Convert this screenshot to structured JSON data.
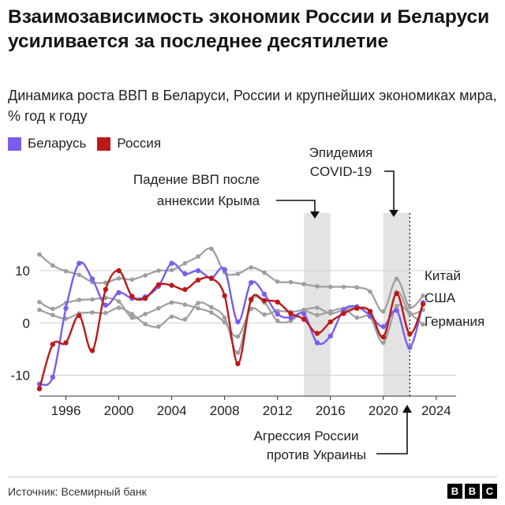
{
  "header": {
    "title": "Взаимозависимость экономик России и Беларуси усиливается за последнее десятилетие",
    "subtitle": "Динамика роста ВВП в Беларуси, России и крупнейших экономиках мира, % год к году"
  },
  "legend": [
    {
      "label": "Беларусь",
      "color": "#7b5cf0"
    },
    {
      "label": "Россия",
      "color": "#bb1919"
    }
  ],
  "annotations": {
    "crimea": "Падение ВВП после аннексии Крыма",
    "covid": "Эпидемия COVID-19",
    "ukraine": "Агрессия России против Украины"
  },
  "chart_data": {
    "type": "line",
    "x": [
      1994,
      1995,
      1996,
      1997,
      1998,
      1999,
      2000,
      2001,
      2002,
      2003,
      2004,
      2005,
      2006,
      2007,
      2008,
      2009,
      2010,
      2011,
      2012,
      2013,
      2014,
      2015,
      2016,
      2017,
      2018,
      2019,
      2020,
      2021,
      2022,
      2023
    ],
    "xticks": [
      1996,
      2000,
      2004,
      2008,
      2012,
      2016,
      2020,
      2024
    ],
    "yticks": [
      10,
      0,
      -10
    ],
    "xlim": [
      1994,
      2025.5
    ],
    "ylim": [
      -14,
      18
    ],
    "series": [
      {
        "name": "Беларусь",
        "color": "#7b5cf0",
        "role": "highlight",
        "values": [
          -11.7,
          -10.4,
          2.8,
          11.4,
          8.4,
          3.4,
          5.8,
          4.7,
          5.0,
          7.0,
          11.4,
          9.4,
          10.0,
          8.6,
          10.2,
          0.2,
          7.7,
          5.5,
          1.7,
          1.0,
          1.7,
          -3.8,
          -2.5,
          2.5,
          3.1,
          1.4,
          -0.7,
          2.4,
          -4.7,
          3.9
        ]
      },
      {
        "name": "Россия",
        "color": "#bb1919",
        "role": "highlight",
        "values": [
          -12.6,
          -4.1,
          -3.8,
          1.4,
          -5.3,
          6.4,
          10.0,
          5.1,
          4.7,
          7.3,
          7.2,
          6.4,
          8.2,
          8.5,
          5.2,
          -7.8,
          4.5,
          4.3,
          4.0,
          1.8,
          0.7,
          -2.0,
          0.2,
          1.8,
          2.8,
          2.2,
          -2.7,
          5.6,
          -2.1,
          3.6
        ]
      },
      {
        "name": "Китай",
        "color": "#9e9e9e",
        "role": "context",
        "values": [
          13.1,
          11.0,
          9.9,
          9.2,
          7.8,
          7.7,
          8.5,
          8.3,
          9.1,
          10.0,
          10.1,
          11.4,
          12.7,
          14.2,
          9.7,
          9.4,
          10.6,
          9.6,
          7.9,
          7.8,
          7.4,
          7.0,
          6.9,
          6.9,
          6.8,
          6.0,
          2.2,
          8.4,
          3.0,
          5.2
        ]
      },
      {
        "name": "США",
        "color": "#9e9e9e",
        "role": "context",
        "values": [
          4.0,
          2.7,
          3.8,
          4.4,
          4.5,
          4.8,
          4.1,
          1.0,
          1.7,
          2.8,
          3.9,
          3.5,
          2.8,
          2.0,
          0.1,
          -2.6,
          2.7,
          1.6,
          2.3,
          2.1,
          2.5,
          2.9,
          1.8,
          2.5,
          3.0,
          2.3,
          -2.8,
          5.9,
          1.9,
          2.5
        ]
      },
      {
        "name": "Германия",
        "color": "#9e9e9e",
        "role": "context",
        "values": [
          2.5,
          1.5,
          0.8,
          1.8,
          2.0,
          1.9,
          2.9,
          1.7,
          -0.2,
          -0.7,
          1.2,
          0.7,
          3.8,
          3.0,
          1.0,
          -5.7,
          4.2,
          3.9,
          0.4,
          0.4,
          2.2,
          1.5,
          2.2,
          2.7,
          1.0,
          1.1,
          -3.8,
          3.2,
          1.8,
          -0.3
        ]
      }
    ],
    "series_labels": [
      "Китай",
      "США",
      "Германия"
    ],
    "shaded_periods": [
      [
        2014,
        2016
      ],
      [
        2020,
        2022
      ]
    ],
    "event_line_x": 2022,
    "grid": "horizontal"
  },
  "footer": {
    "source": "Источник: Всемирный банк",
    "logo_letters": [
      "B",
      "B",
      "C"
    ]
  }
}
